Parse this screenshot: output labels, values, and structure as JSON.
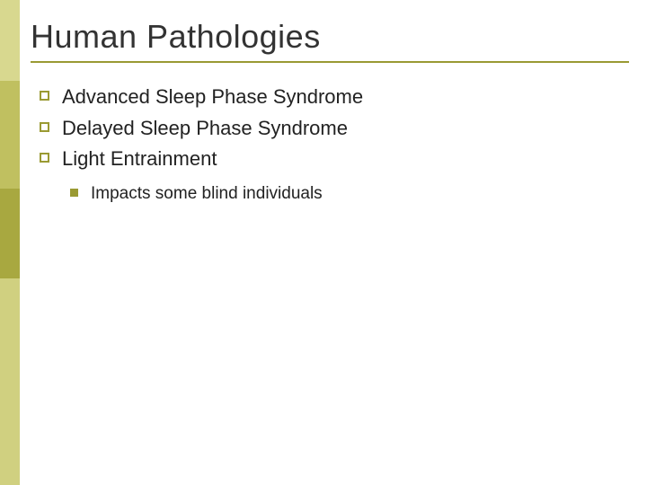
{
  "colors": {
    "accent": "#9a9a33",
    "sidebar1": "#d8d88f",
    "sidebar2": "#c0c060",
    "sidebar3": "#a8a840",
    "sidebar4": "#d0d080",
    "title_text": "#333333",
    "body_text": "#222222",
    "underline": "#9a9a33",
    "bullet_border": "#9a9a33",
    "sub_bullet_fill": "#9a9a33"
  },
  "layout": {
    "sidebar_heights": [
      90,
      120,
      100,
      230
    ]
  },
  "title": "Human Pathologies",
  "bullets": [
    {
      "text": "Advanced Sleep Phase Syndrome"
    },
    {
      "text": "Delayed Sleep Phase Syndrome"
    },
    {
      "text": "Light Entrainment"
    }
  ],
  "sub_bullets": [
    {
      "text": "Impacts some blind individuals"
    }
  ]
}
